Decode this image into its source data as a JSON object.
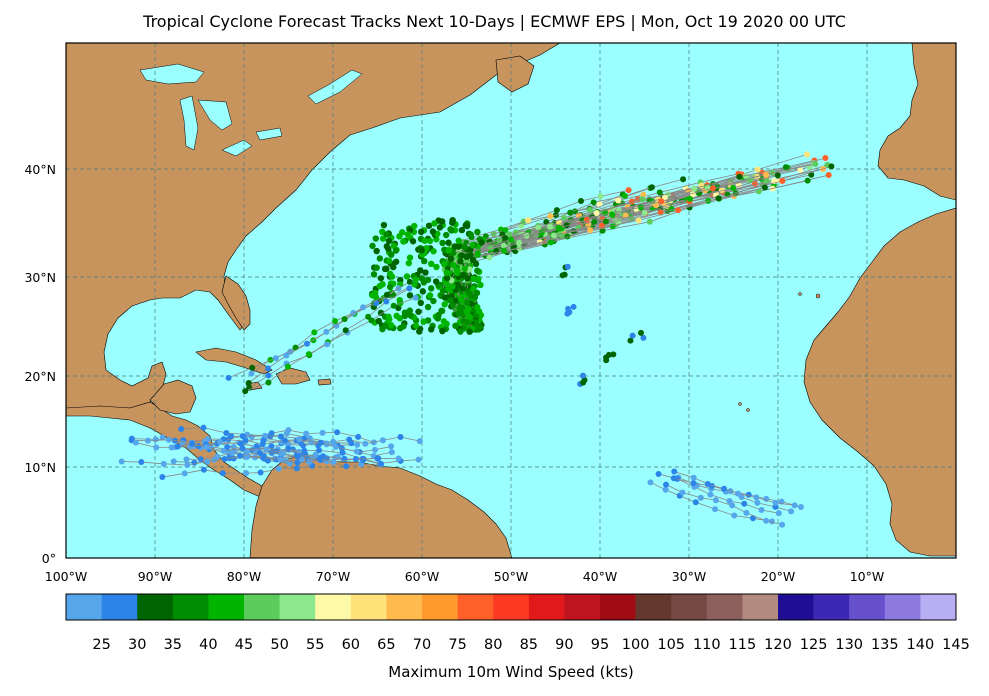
{
  "title": "Tropical Cyclone Forecast Tracks Next 10-Days | ECMWF EPS | Mon, Oct 19 2020 00 UTC",
  "lat_ticks": [
    "40°N",
    "30°N",
    "20°N",
    "10°N",
    "0°"
  ],
  "lon_ticks": [
    "100°W",
    "90°W",
    "80°W",
    "70°W",
    "60°W",
    "50°W",
    "40°W",
    "30°W",
    "20°W",
    "10°W"
  ],
  "colorbar": {
    "title": "Maximum 10m Wind Speed (kts)",
    "labels": [
      "25",
      "30",
      "35",
      "40",
      "45",
      "50",
      "55",
      "60",
      "65",
      "70",
      "75",
      "80",
      "85",
      "90",
      "95",
      "100",
      "105",
      "110",
      "115",
      "120",
      "125",
      "130",
      "135",
      "140",
      "145"
    ],
    "colors": [
      "#55a6ea",
      "#2d84e8",
      "#006400",
      "#008c00",
      "#00b400",
      "#5ccd5c",
      "#8ce88c",
      "#fffaa8",
      "#ffe37a",
      "#ffbb4e",
      "#ff9b2e",
      "#ff5f28",
      "#ff3a22",
      "#e01a1a",
      "#be1420",
      "#a00c14",
      "#63392d",
      "#754a44",
      "#8c605c",
      "#b28a80",
      "#1f0e94",
      "#3d28b4",
      "#6650cc",
      "#8c7ae0",
      "#b8aef4"
    ]
  },
  "colors": {
    "ocean": "#9bffff",
    "land": "#c8945e",
    "track_line": "#888888"
  }
}
